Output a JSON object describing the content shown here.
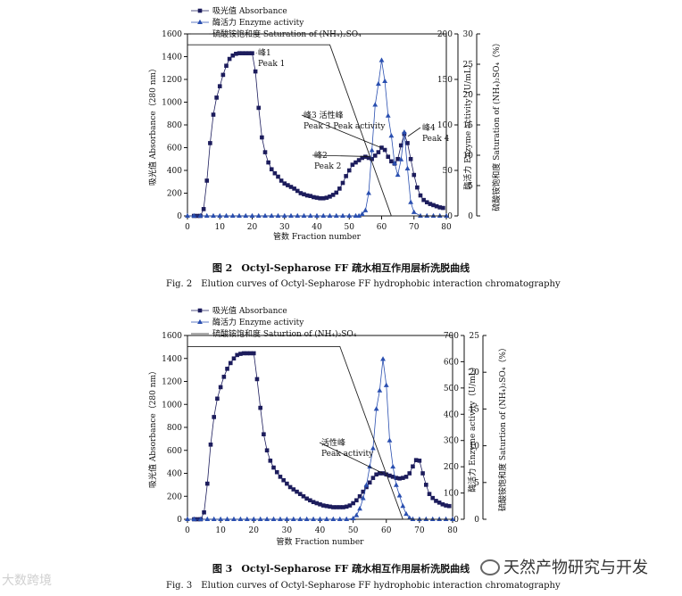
{
  "figures": [
    {
      "id": "fig2",
      "caption_zh_label": "图 2",
      "caption_zh": "Octyl-Sepharose FF 疏水相互作用层析洗脱曲线",
      "caption_en_label": "Fig. 2",
      "caption_en": "Elution curves of Octyl-Sepharose FF hydrophobic interaction chromatography"
    },
    {
      "id": "fig3",
      "caption_zh_label": "图 3",
      "caption_zh": "Octyl-Sepharose FF 疏水相互作用层析洗脱曲线",
      "caption_en_label": "Fig. 3",
      "caption_en": "Elution curves of Octyl-Sepharose FF hydrophobic interaction chromatography"
    }
  ],
  "watermarks": {
    "left": "大数跨境",
    "right": "天然产物研究与开发"
  },
  "colors": {
    "absorbance": "#1c1c5c",
    "enzyme": "#2a4fb0",
    "salt": "#222222",
    "axis": "#111111"
  },
  "chart_data": [
    {
      "type": "line",
      "legend": [
        {
          "marker": "square",
          "text": "吸光值 Absorbance"
        },
        {
          "marker": "triangle",
          "text": "酶活力 Enzyme activity"
        },
        {
          "marker": "line",
          "text": "硫酸铵饱和度 Saturation of (NH₄)₂SO₄"
        }
      ],
      "legend_position": "top-left",
      "xlabel": "管数 Fraction number",
      "ylabel_left": "吸光值 Absorbance（280 nm）",
      "ylabel_right1": "酶活力 Enzyme activity（U/mL）",
      "ylabel_right2": "硫酸铵饱和度 Saturation of (NH₄)₂SO₄（%）",
      "xlim": [
        0,
        80
      ],
      "xticks": [
        "0",
        "10",
        "20",
        "30",
        "40",
        "50",
        "60",
        "70",
        "80"
      ],
      "ylim_left": [
        0,
        1600
      ],
      "yticks_left": [
        "0",
        "200",
        "400",
        "600",
        "800",
        "1000",
        "1200",
        "1400",
        "1600"
      ],
      "ylim_right1": [
        0,
        200
      ],
      "yticks_right1": [
        "0",
        "50",
        "100",
        "150",
        "200"
      ],
      "ylim_right2": [
        0,
        30
      ],
      "yticks_right2": [
        "0",
        "5",
        "10",
        "15",
        "20",
        "25",
        "30"
      ],
      "grid": false,
      "series": [
        {
          "name": "吸光值 Absorbance",
          "axis": "left",
          "marker": "square",
          "x": [
            2,
            3,
            4,
            5,
            6,
            7,
            8,
            9,
            10,
            11,
            12,
            13,
            14,
            15,
            16,
            17,
            18,
            19,
            20,
            21,
            22,
            23,
            24,
            25,
            26,
            27,
            28,
            29,
            30,
            31,
            32,
            33,
            34,
            35,
            36,
            37,
            38,
            39,
            40,
            41,
            42,
            43,
            44,
            45,
            46,
            47,
            48,
            49,
            50,
            51,
            52,
            53,
            54,
            55,
            56,
            57,
            58,
            59,
            60,
            61,
            62,
            63,
            64,
            65,
            66,
            67,
            68,
            69,
            70,
            71,
            72,
            73,
            74,
            75,
            76,
            77,
            78,
            79
          ],
          "y": [
            0,
            0,
            0,
            60,
            310,
            640,
            890,
            1040,
            1140,
            1240,
            1320,
            1380,
            1410,
            1425,
            1430,
            1430,
            1430,
            1430,
            1430,
            1270,
            950,
            690,
            560,
            470,
            410,
            375,
            345,
            310,
            285,
            270,
            255,
            240,
            220,
            200,
            190,
            180,
            175,
            165,
            160,
            155,
            155,
            160,
            170,
            185,
            205,
            240,
            290,
            350,
            400,
            450,
            470,
            490,
            510,
            520,
            510,
            500,
            530,
            560,
            600,
            580,
            520,
            480,
            460,
            500,
            620,
            720,
            640,
            500,
            360,
            250,
            180,
            140,
            120,
            105,
            95,
            85,
            75,
            70
          ]
        },
        {
          "name": "酶活力 Enzyme activity",
          "axis": "right1",
          "marker": "triangle",
          "x": [
            0,
            2,
            4,
            6,
            8,
            10,
            12,
            14,
            16,
            18,
            20,
            22,
            24,
            26,
            28,
            30,
            32,
            34,
            36,
            38,
            40,
            42,
            44,
            46,
            48,
            50,
            52,
            53,
            54,
            55,
            56,
            57,
            58,
            59,
            60,
            61,
            62,
            63,
            64,
            65,
            66,
            67,
            68,
            69,
            70,
            72,
            74,
            76,
            78,
            80
          ],
          "y": [
            0,
            0,
            0,
            0,
            0,
            0,
            0,
            0,
            0,
            0,
            0,
            0,
            0,
            0,
            0,
            0,
            0,
            0,
            0,
            0,
            0,
            0,
            0,
            0,
            0,
            0,
            0,
            0,
            2,
            6,
            25,
            72,
            122,
            145,
            171,
            148,
            110,
            88,
            58,
            45,
            62,
            92,
            52,
            15,
            4,
            0,
            0,
            0,
            0,
            0
          ]
        },
        {
          "name": "硫酸铵饱和度 Saturation of (NH₄)₂SO₄",
          "axis": "right2",
          "marker": "line",
          "x": [
            0,
            44,
            63,
            64,
            80
          ],
          "y": [
            28.2,
            28.2,
            0,
            0,
            0
          ]
        }
      ],
      "annotations": [
        {
          "text": "峰1\nPeak 1",
          "x": 20,
          "y": 1430
        },
        {
          "text": "峰3 活性峰\nPeak 3 Peak activity",
          "x": 57,
          "y": 735
        },
        {
          "text": "峰2\nPeak 2",
          "x": 55,
          "y": 520
        },
        {
          "text": "峰4\nPeak 4",
          "x": 67,
          "y": 720
        }
      ]
    },
    {
      "type": "line",
      "legend": [
        {
          "marker": "square",
          "text": "吸光值 Absorbance"
        },
        {
          "marker": "triangle",
          "text": "酶活力 Enzyme activity"
        },
        {
          "marker": "line",
          "text": "硫酸铵饱和度 Saturtion of (NH₄)₂SO₄"
        }
      ],
      "legend_position": "top-left",
      "xlabel": "管数 Fraction number",
      "ylabel_left": "吸光值 Absorbance（280 nm）",
      "ylabel_right1": "酶活力 Enzyme activity（U/mL）",
      "ylabel_right2": "硫酸铵饱和度 Saturtion of (NH₄)₂SO₄（%）",
      "xlim": [
        0,
        80
      ],
      "xticks": [
        "0",
        "10",
        "20",
        "30",
        "40",
        "50",
        "60",
        "70",
        "80"
      ],
      "ylim_left": [
        0,
        1600
      ],
      "yticks_left": [
        "0",
        "200",
        "400",
        "600",
        "800",
        "1000",
        "1200",
        "1400",
        "1600"
      ],
      "ylim_right1": [
        0,
        700
      ],
      "yticks_right1": [
        "0",
        "100",
        "200",
        "300",
        "400",
        "500",
        "600",
        "700"
      ],
      "ylim_right2": [
        0,
        25
      ],
      "yticks_right2": [
        "0",
        "5",
        "10",
        "15",
        "20",
        "25"
      ],
      "grid": false,
      "series": [
        {
          "name": "吸光值 Absorbance",
          "axis": "left",
          "marker": "square",
          "x": [
            2,
            3,
            4,
            5,
            6,
            7,
            8,
            9,
            10,
            11,
            12,
            13,
            14,
            15,
            16,
            17,
            18,
            19,
            20,
            21,
            22,
            23,
            24,
            25,
            26,
            27,
            28,
            29,
            30,
            31,
            32,
            33,
            34,
            35,
            36,
            37,
            38,
            39,
            40,
            41,
            42,
            43,
            44,
            45,
            46,
            47,
            48,
            49,
            50,
            51,
            52,
            53,
            54,
            55,
            56,
            57,
            58,
            59,
            60,
            61,
            62,
            63,
            64,
            65,
            66,
            67,
            68,
            69,
            70,
            71,
            72,
            73,
            74,
            75,
            76,
            77,
            78,
            79
          ],
          "y": [
            0,
            0,
            0,
            60,
            310,
            650,
            890,
            1050,
            1150,
            1240,
            1310,
            1360,
            1400,
            1430,
            1440,
            1445,
            1445,
            1445,
            1445,
            1220,
            970,
            740,
            600,
            510,
            450,
            410,
            370,
            340,
            310,
            280,
            260,
            240,
            220,
            200,
            180,
            165,
            150,
            140,
            130,
            120,
            115,
            110,
            105,
            105,
            105,
            105,
            110,
            120,
            140,
            165,
            200,
            240,
            280,
            320,
            360,
            390,
            400,
            400,
            390,
            380,
            370,
            360,
            355,
            360,
            370,
            400,
            460,
            515,
            510,
            400,
            300,
            220,
            185,
            160,
            145,
            130,
            120,
            115
          ]
        },
        {
          "name": "酶活力 Enzyme activity",
          "axis": "right1",
          "marker": "triangle",
          "x": [
            0,
            2,
            4,
            6,
            8,
            10,
            12,
            14,
            16,
            18,
            20,
            22,
            24,
            26,
            28,
            30,
            32,
            34,
            36,
            38,
            40,
            42,
            44,
            46,
            48,
            50,
            51,
            52,
            53,
            54,
            55,
            56,
            57,
            58,
            59,
            60,
            61,
            62,
            63,
            64,
            65,
            66,
            67,
            68,
            70,
            72,
            74,
            76,
            78,
            80
          ],
          "y": [
            0,
            0,
            0,
            0,
            0,
            0,
            0,
            0,
            0,
            0,
            0,
            0,
            0,
            0,
            0,
            0,
            0,
            0,
            0,
            0,
            0,
            0,
            0,
            0,
            0,
            3,
            15,
            40,
            80,
            130,
            200,
            270,
            420,
            490,
            610,
            510,
            300,
            200,
            130,
            90,
            50,
            20,
            5,
            0,
            0,
            0,
            0,
            0,
            0,
            0
          ]
        },
        {
          "name": "硫酸铵饱和度 Saturtion of (NH₄)₂SO₄",
          "axis": "right2",
          "marker": "line",
          "x": [
            0,
            46,
            65,
            66,
            80
          ],
          "y": [
            23.5,
            23.5,
            0,
            0,
            0
          ]
        }
      ],
      "annotations": [
        {
          "text": "活性峰\nPeak activity",
          "x": 58,
          "y": 400
        }
      ]
    }
  ]
}
